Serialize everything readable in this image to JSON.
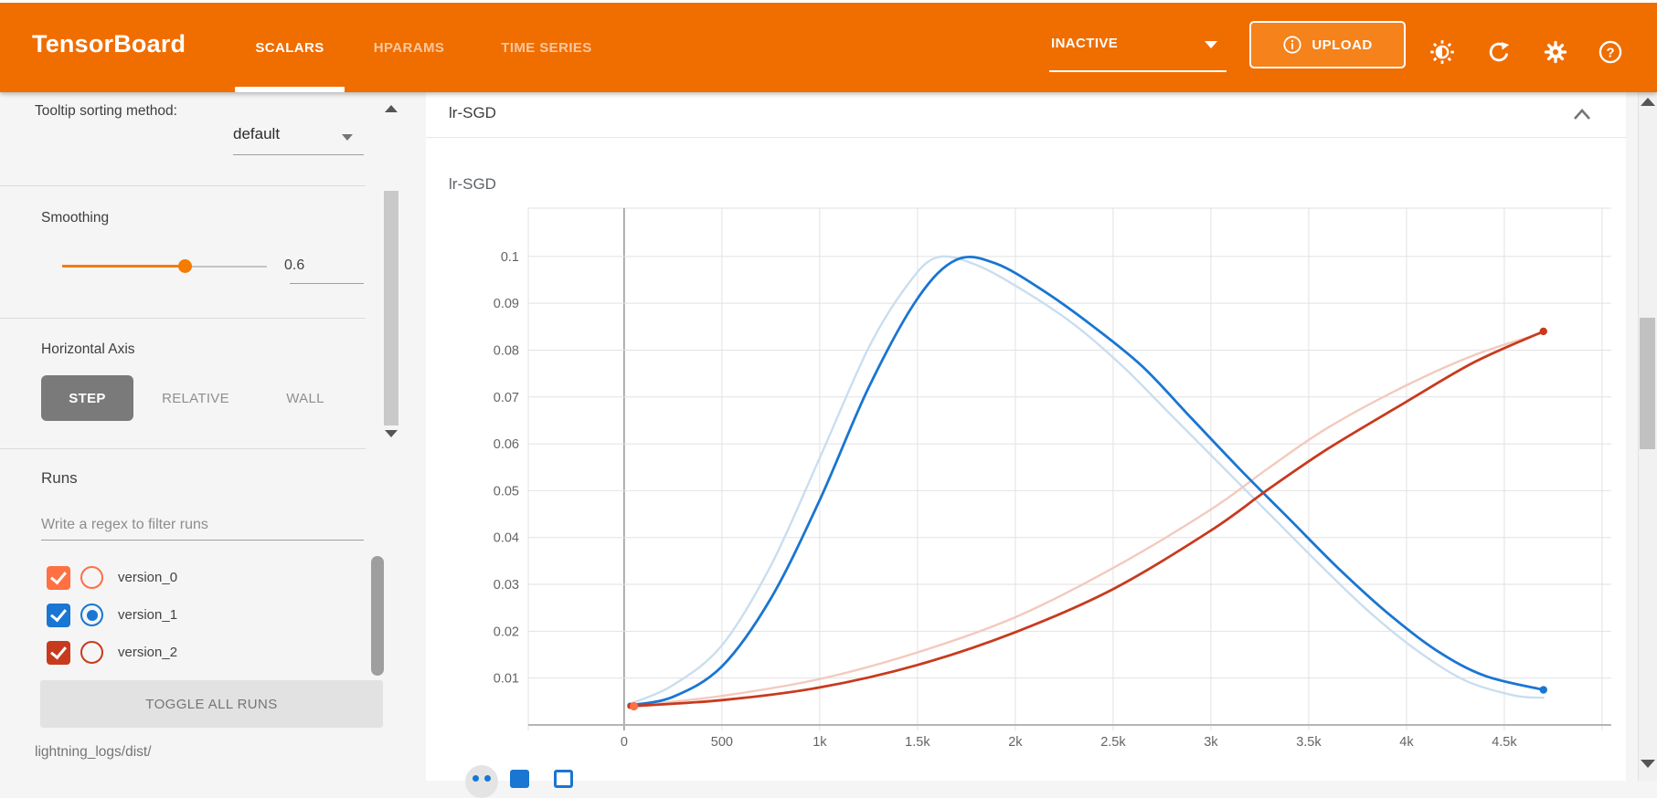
{
  "header": {
    "brand": "TensorBoard",
    "brand_color": "#f06d00",
    "tabs": [
      {
        "label": "SCALARS",
        "active": true
      },
      {
        "label": "HPARAMS",
        "active": false
      },
      {
        "label": "TIME SERIES",
        "active": false
      }
    ],
    "status": {
      "value": "INACTIVE"
    },
    "upload_label": "UPLOAD",
    "icons": [
      "info-icon",
      "brightness-icon",
      "refresh-icon",
      "settings-icon",
      "help-icon"
    ]
  },
  "sidebar": {
    "tooltip_sorting": {
      "label": "Tooltip sorting method:",
      "value": "default"
    },
    "smoothing": {
      "label": "Smoothing",
      "value": "0.6",
      "percent": 60
    },
    "horizontal_axis": {
      "label": "Horizontal Axis",
      "options": [
        "STEP",
        "RELATIVE",
        "WALL"
      ],
      "selected": "STEP"
    },
    "runs": {
      "label": "Runs",
      "filter_placeholder": "Write a regex to filter runs",
      "items": [
        {
          "name": "version_0",
          "color": "#ff7043",
          "checked": true,
          "radio_selected": false
        },
        {
          "name": "version_1",
          "color": "#1976d2",
          "checked": true,
          "radio_selected": true
        },
        {
          "name": "version_2",
          "color": "#c83a1d",
          "checked": true,
          "radio_selected": false
        }
      ],
      "toggle_button": "TOGGLE ALL RUNS",
      "log_dir": "lightning_logs/dist/"
    }
  },
  "main": {
    "card_title": "lr-SGD",
    "chart_title": "lr-SGD"
  },
  "chart_data": {
    "type": "line",
    "title": "lr-SGD",
    "smoothing": 0.6,
    "xlim": [
      -490,
      5047
    ],
    "ylim": [
      0,
      0.1103
    ],
    "grid": true,
    "legend_position": "none",
    "x_ticks": [
      {
        "step": 0,
        "label": "0"
      },
      {
        "step": 500,
        "label": "500"
      },
      {
        "step": 1000,
        "label": "1k"
      },
      {
        "step": 1500,
        "label": "1.5k"
      },
      {
        "step": 2000,
        "label": "2k"
      },
      {
        "step": 2500,
        "label": "2.5k"
      },
      {
        "step": 3000,
        "label": "3k"
      },
      {
        "step": 3500,
        "label": "3.5k"
      },
      {
        "step": 4000,
        "label": "4k"
      },
      {
        "step": 4500,
        "label": "4.5k"
      },
      {
        "step": 5000,
        "label": ""
      }
    ],
    "y_ticks": [
      {
        "value": 0.1,
        "label": "0.1"
      },
      {
        "value": 0.09,
        "label": "0.09"
      },
      {
        "value": 0.08,
        "label": "0.08"
      },
      {
        "value": 0.07,
        "label": "0.07"
      },
      {
        "value": 0.06,
        "label": "0.06"
      },
      {
        "value": 0.05,
        "label": "0.05"
      },
      {
        "value": 0.04,
        "label": "0.04"
      },
      {
        "value": 0.03,
        "label": "0.03"
      },
      {
        "value": 0.02,
        "label": "0.02"
      },
      {
        "value": 0.01,
        "label": "0.01"
      }
    ],
    "series": [
      {
        "name": "version_1 (unsmoothed)",
        "run": "version_1",
        "role": "raw",
        "color": "#c9def0",
        "width": 2.4,
        "end_marker": false,
        "points": [
          [
            30,
            0.0045
          ],
          [
            250,
            0.0085
          ],
          [
            500,
            0.017
          ],
          [
            750,
            0.034
          ],
          [
            1000,
            0.057
          ],
          [
            1250,
            0.0805
          ],
          [
            1450,
            0.094
          ],
          [
            1600,
            0.0998
          ],
          [
            1800,
            0.0982
          ],
          [
            2050,
            0.0925
          ],
          [
            2300,
            0.0855
          ],
          [
            2550,
            0.0765
          ],
          [
            2800,
            0.066
          ],
          [
            3050,
            0.0555
          ],
          [
            3300,
            0.045
          ],
          [
            3550,
            0.0345
          ],
          [
            3800,
            0.0245
          ],
          [
            4050,
            0.016
          ],
          [
            4300,
            0.0095
          ],
          [
            4550,
            0.0063
          ],
          [
            4700,
            0.0058
          ]
        ]
      },
      {
        "name": "version_2 (unsmoothed)",
        "run": "version_2",
        "role": "raw",
        "color": "#f2cabd",
        "width": 2.4,
        "end_marker": false,
        "points": [
          [
            30,
            0.004
          ],
          [
            500,
            0.0062
          ],
          [
            1000,
            0.0098
          ],
          [
            1500,
            0.0155
          ],
          [
            2000,
            0.023
          ],
          [
            2500,
            0.0335
          ],
          [
            3000,
            0.046
          ],
          [
            3300,
            0.055
          ],
          [
            3600,
            0.0635
          ],
          [
            4000,
            0.0725
          ],
          [
            4350,
            0.079
          ],
          [
            4700,
            0.0838
          ]
        ]
      },
      {
        "name": "version_1",
        "run": "version_1",
        "role": "smoothed",
        "color": "#1976d2",
        "width": 2.8,
        "end_marker": true,
        "points": [
          [
            30,
            0.0042
          ],
          [
            250,
            0.006
          ],
          [
            500,
            0.0125
          ],
          [
            750,
            0.027
          ],
          [
            1000,
            0.048
          ],
          [
            1250,
            0.072
          ],
          [
            1500,
            0.091
          ],
          [
            1700,
            0.0993
          ],
          [
            1900,
            0.0985
          ],
          [
            2150,
            0.0925
          ],
          [
            2400,
            0.085
          ],
          [
            2650,
            0.0765
          ],
          [
            2900,
            0.0655
          ],
          [
            3150,
            0.0545
          ],
          [
            3400,
            0.044
          ],
          [
            3650,
            0.0335
          ],
          [
            3900,
            0.024
          ],
          [
            4150,
            0.016
          ],
          [
            4400,
            0.0105
          ],
          [
            4700,
            0.0075
          ]
        ]
      },
      {
        "name": "version_2",
        "run": "version_2",
        "role": "smoothed",
        "color": "#c83a1d",
        "width": 2.8,
        "end_marker": true,
        "points": [
          [
            30,
            0.004
          ],
          [
            500,
            0.0053
          ],
          [
            1000,
            0.008
          ],
          [
            1500,
            0.0128
          ],
          [
            2000,
            0.0198
          ],
          [
            2500,
            0.029
          ],
          [
            3000,
            0.0415
          ],
          [
            3300,
            0.0505
          ],
          [
            3600,
            0.059
          ],
          [
            4000,
            0.069
          ],
          [
            4350,
            0.0775
          ],
          [
            4700,
            0.084
          ]
        ]
      },
      {
        "name": "version_0",
        "run": "version_0",
        "role": "smoothed",
        "color": "#ff7043",
        "width": 2.8,
        "end_marker": false,
        "points": [
          [
            50,
            0.004
          ]
        ]
      }
    ]
  }
}
